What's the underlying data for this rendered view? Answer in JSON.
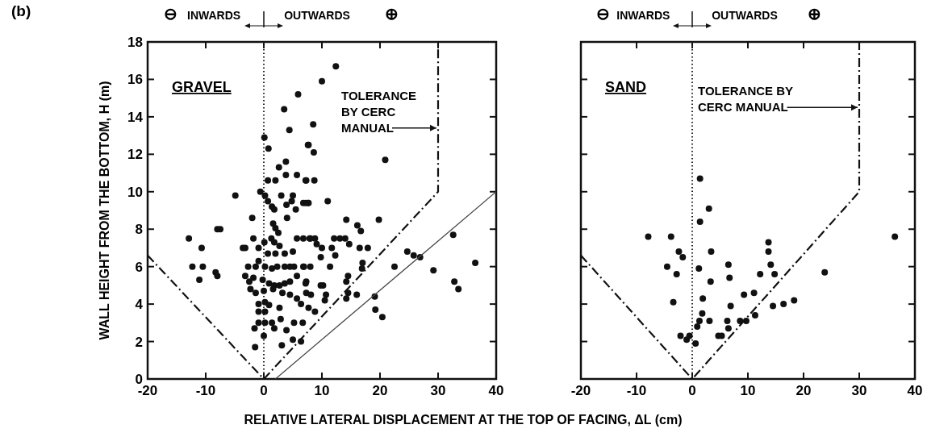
{
  "chart_data": [
    {
      "type": "scatter",
      "title": "GRAVEL",
      "ylabel": "WALL HEIGHT FROM THE BOTTOM, H (m)",
      "xlabel": "RELATIVE LATERAL DISPLACEMENT AT THE TOP OF FACING, ΔL (cm)",
      "xlim": [
        -20,
        40
      ],
      "ylim": [
        0,
        18
      ],
      "xticks": [
        -20,
        -10,
        0,
        10,
        20,
        30,
        40
      ],
      "yticks": [
        0,
        2,
        4,
        6,
        8,
        10,
        12,
        14,
        16,
        18
      ],
      "grid": false,
      "marker": "circle",
      "ref_lines": [
        {
          "axis": "x",
          "value": 0,
          "line_style": "dotted",
          "color": "#222222"
        }
      ],
      "annotations": [
        "(b)",
        "⊖",
        "INWARDS",
        "OUTWARDS",
        "⊕",
        {
          "text": "TOLERANCE BY CERC MANUAL",
          "x": 30,
          "y": 13.4
        }
      ],
      "series": [
        {
          "color": "#111111",
          "x": [
            5.9,
            3.5,
            4.4,
            0.1,
            0.8,
            7.7,
            3.8,
            2.6,
            3.8,
            5.7,
            7.3,
            0.7,
            2,
            -4.9,
            -0.6,
            0.2,
            3,
            5,
            0.7,
            1.4,
            1.8,
            3.9,
            4.8,
            5.5,
            6.8,
            7.7,
            -2,
            4,
            1.6,
            2,
            2.5,
            -8,
            -7.5,
            -12.9,
            -1.8,
            1.3,
            1.8,
            2.7,
            5.7,
            6.8,
            8,
            0.1,
            -10.7,
            -3.6,
            -3.2,
            -0.9,
            0.7,
            2,
            3.6,
            5,
            -0.9,
            -12.3,
            -10.5,
            -2.7,
            -1.4,
            0.2,
            1.4,
            2.3,
            3.6,
            4.5,
            5.2,
            6.8,
            8,
            -8.3,
            -8,
            -11.1,
            -3.2,
            -2.5,
            -1.8,
            -0.2,
            0.9,
            1.8,
            2.7,
            3.6,
            4.5,
            5.7,
            7.3,
            -2.3,
            -1.4,
            0,
            1.6,
            3.2,
            4.5,
            5.7,
            7.3,
            -0.9,
            0.2,
            0.9,
            2.7,
            6.4,
            7.7,
            -0.9,
            0.2,
            2.9,
            -0.9,
            0.2,
            1.4,
            5.2,
            6.7,
            -1.6,
            1.8,
            3.9,
            0,
            5,
            6.4,
            -1.5,
            3.1,
            12.4,
            10,
            8.5,
            7.6,
            8.6,
            20.9,
            7.2,
            8.7,
            7.2,
            7.6,
            11,
            14.2,
            19.8,
            16.1,
            16.7,
            7.9,
            8.8,
            12.1,
            13.1,
            14,
            14.7,
            9.1,
            10,
            11.7,
            16.5,
            17.9,
            9.8,
            12.3,
            24.7,
            25.8,
            26.9,
            32.6,
            36.4,
            29.2,
            22.5,
            11.4,
            17,
            16.9,
            6.9,
            14.5,
            14.2,
            7.2,
            9.8,
            10.2,
            8.1,
            10.7,
            10.5,
            14.5,
            14.2,
            16,
            19.1,
            19.2,
            20.4,
            8.8,
            32.8,
            33.5
          ],
          "values": [
            15.2,
            14.4,
            13.3,
            12.9,
            12.3,
            12.5,
            11.6,
            11.3,
            10.9,
            10.9,
            10.6,
            10.6,
            10.6,
            9.8,
            10,
            9.8,
            9.8,
            9.8,
            9.5,
            9.2,
            9.05,
            9.3,
            9.5,
            9.05,
            9.4,
            9.4,
            8.6,
            8.6,
            8.3,
            8.05,
            7.8,
            8,
            8,
            7.5,
            7.5,
            7.5,
            7.3,
            7.1,
            7.5,
            7.5,
            7.5,
            7.3,
            7,
            7,
            7,
            7,
            6.7,
            6.7,
            6.7,
            6.8,
            6.3,
            6,
            6,
            6,
            6,
            6,
            5.9,
            6,
            6,
            6,
            6,
            6,
            6,
            5.7,
            5.5,
            5.3,
            5.5,
            5.2,
            5.4,
            5.3,
            5.1,
            5,
            5,
            5.1,
            5.2,
            5.5,
            5.2,
            4.8,
            4.6,
            4.7,
            4.8,
            4.6,
            4.5,
            4.3,
            4.6,
            4,
            4.1,
            3.95,
            3.8,
            4,
            3.8,
            3.6,
            3.6,
            3.2,
            3,
            3,
            3,
            3,
            3,
            2.7,
            2.7,
            2.6,
            2.3,
            2.1,
            2,
            1.7,
            1.8,
            16.7,
            15.9,
            13.6,
            12.5,
            12.1,
            11.7,
            10.6,
            10.6,
            9.4,
            9.4,
            9.5,
            8.5,
            8.5,
            8.2,
            7.9,
            7.5,
            7.5,
            7.5,
            7.5,
            7.5,
            7.2,
            7.2,
            7,
            7,
            7,
            7,
            6.5,
            6.6,
            6.8,
            6.6,
            6.5,
            7.7,
            6.2,
            5.8,
            6,
            6,
            6.2,
            5.9,
            6,
            5.5,
            5.2,
            5.1,
            5,
            5,
            4.5,
            4.5,
            4.2,
            4.6,
            4.3,
            4.5,
            4.4,
            3.7,
            3.3,
            3.6,
            5.2,
            4.8
          ]
        },
        {
          "type": "line",
          "color": "#111111",
          "marker": "none",
          "line_style": "dashed",
          "x": [
            -20,
            0,
            30,
            30
          ],
          "values": [
            6.6,
            0,
            10,
            18
          ]
        },
        {
          "type": "line",
          "color": "#444444",
          "marker": "none",
          "line_style": "solid",
          "x": [
            2,
            40
          ],
          "values": [
            0,
            10
          ]
        }
      ]
    },
    {
      "type": "scatter",
      "title": "SAND",
      "xlim": [
        -20,
        40
      ],
      "ylim": [
        0,
        18
      ],
      "xticks": [
        -20,
        -10,
        0,
        10,
        20,
        30,
        40
      ],
      "yticks": [
        0,
        2,
        4,
        6,
        8,
        10,
        12,
        14,
        16,
        18
      ],
      "tick_labels": "x",
      "grid": false,
      "marker": "circle",
      "ref_lines": [
        {
          "axis": "x",
          "value": 0,
          "line_style": "dotted",
          "color": "#222222"
        }
      ],
      "annotations": [
        "⊖",
        "INWARDS",
        "OUTWARDS",
        "⊕",
        {
          "text": "TOLERANCE BY CERC MANUAL",
          "x": 30,
          "y": 14.5
        }
      ],
      "series": [
        {
          "color": "#111111",
          "x": [
            1.4,
            3,
            1.4,
            -7.9,
            -3.8,
            13.7,
            36.4,
            -2.4,
            3.4,
            13.7,
            -1.7,
            -4.5,
            6.5,
            14.1,
            1.2,
            -2.8,
            6.7,
            12.2,
            14.8,
            23.8,
            3.3,
            9.3,
            11.1,
            -3.4,
            1.9,
            6.9,
            14.5,
            16.4,
            18.3,
            1.8,
            1.3,
            0.9,
            3.1,
            6.3,
            8.6,
            9.7,
            11.3,
            6.5,
            -2.1,
            -1,
            -0.5,
            0.6,
            4.7,
            5.3
          ],
          "values": [
            10.7,
            9.1,
            8.4,
            7.6,
            7.6,
            7.3,
            7.6,
            6.8,
            6.8,
            6.8,
            6.5,
            6,
            6.1,
            6.1,
            5.9,
            5.6,
            5.4,
            5.6,
            5.6,
            5.7,
            5.2,
            4.5,
            4.6,
            4.1,
            4.3,
            3.9,
            3.9,
            4,
            4.2,
            3.5,
            3.1,
            2.8,
            3.1,
            3.1,
            3.1,
            3.1,
            3.4,
            2.7,
            2.3,
            2.1,
            2.3,
            1.9,
            2.3,
            2.3
          ]
        },
        {
          "type": "line",
          "color": "#111111",
          "marker": "none",
          "line_style": "dashed",
          "x": [
            -20,
            0,
            30,
            30
          ],
          "values": [
            6.6,
            0,
            10,
            18
          ]
        }
      ]
    }
  ]
}
